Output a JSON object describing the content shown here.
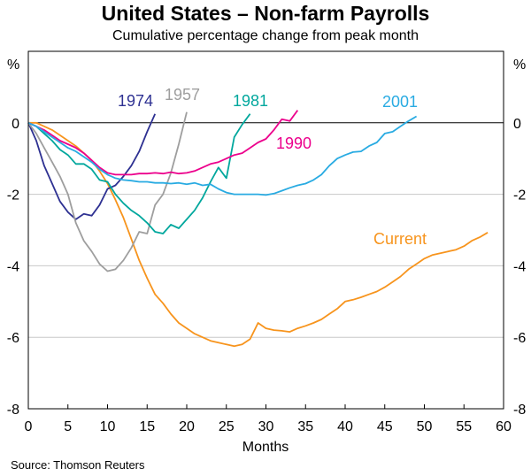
{
  "chart_data": {
    "type": "line",
    "title": "United States – Non-farm Payrolls",
    "subtitle": "Cumulative percentage change from peak month",
    "xlabel": "Months",
    "ylabel_left": "%",
    "ylabel_right": "%",
    "source": "Source: Thomson Reuters",
    "xlim": [
      0,
      60
    ],
    "ylim": [
      -8,
      2
    ],
    "xticks": [
      0,
      5,
      10,
      15,
      20,
      25,
      30,
      35,
      40,
      45,
      50,
      55,
      60
    ],
    "yticks": [
      0,
      -2,
      -4,
      -6,
      -8
    ],
    "ytick_labels": [
      "0",
      "-2",
      "-4",
      "-6",
      "-8"
    ],
    "gridlines_y": [
      0,
      -2,
      -4,
      -6
    ],
    "series": [
      {
        "name": "Current",
        "color": "#f7941d",
        "x": [
          0,
          1,
          2,
          3,
          4,
          5,
          6,
          7,
          8,
          9,
          10,
          11,
          12,
          13,
          14,
          15,
          16,
          17,
          18,
          19,
          20,
          21,
          22,
          23,
          24,
          25,
          26,
          27,
          28,
          29,
          30,
          31,
          32,
          33,
          34,
          35,
          36,
          37,
          38,
          39,
          40,
          41,
          42,
          43,
          44,
          45,
          46,
          47,
          48,
          49,
          50,
          51,
          52,
          53,
          54,
          55,
          56,
          57,
          58
        ],
        "y": [
          0,
          0,
          -0.1,
          -0.2,
          -0.35,
          -0.5,
          -0.65,
          -0.85,
          -1.05,
          -1.35,
          -1.7,
          -2.15,
          -2.65,
          -3.25,
          -3.85,
          -4.35,
          -4.8,
          -5.05,
          -5.35,
          -5.6,
          -5.75,
          -5.9,
          -6.0,
          -6.1,
          -6.15,
          -6.2,
          -6.25,
          -6.2,
          -6.05,
          -5.6,
          -5.75,
          -5.8,
          -5.82,
          -5.85,
          -5.75,
          -5.68,
          -5.6,
          -5.5,
          -5.35,
          -5.2,
          -5.0,
          -4.95,
          -4.88,
          -4.8,
          -4.72,
          -4.6,
          -4.45,
          -4.3,
          -4.1,
          -3.95,
          -3.8,
          -3.7,
          -3.65,
          -3.6,
          -3.55,
          -3.45,
          -3.3,
          -3.2,
          -3.07
        ]
      },
      {
        "name": "1974",
        "color": "#2e3192",
        "x": [
          0,
          1,
          2,
          3,
          4,
          5,
          6,
          7,
          8,
          9,
          10,
          11,
          12,
          13,
          14,
          15,
          16
        ],
        "y": [
          0,
          -0.5,
          -1.2,
          -1.7,
          -2.2,
          -2.5,
          -2.7,
          -2.55,
          -2.6,
          -2.3,
          -1.85,
          -1.75,
          -1.5,
          -1.2,
          -0.8,
          -0.25,
          0.25
        ]
      },
      {
        "name": "1957",
        "color": "#9e9e9e",
        "x": [
          0,
          1,
          2,
          3,
          4,
          5,
          6,
          7,
          8,
          9,
          10,
          11,
          12,
          13,
          14,
          15,
          16,
          17,
          18,
          19,
          20
        ],
        "y": [
          0,
          -0.3,
          -0.7,
          -1.1,
          -1.5,
          -2.0,
          -2.8,
          -3.3,
          -3.6,
          -3.95,
          -4.15,
          -4.1,
          -3.85,
          -3.5,
          -3.05,
          -3.1,
          -2.3,
          -2.0,
          -1.4,
          -0.6,
          0.3
        ]
      },
      {
        "name": "1981",
        "color": "#00a79d",
        "x": [
          0,
          1,
          2,
          3,
          4,
          5,
          6,
          7,
          8,
          9,
          10,
          11,
          12,
          13,
          14,
          15,
          16,
          17,
          18,
          19,
          20,
          21,
          22,
          23,
          24,
          25,
          26,
          27,
          28
        ],
        "y": [
          0,
          -0.1,
          -0.3,
          -0.5,
          -0.75,
          -0.9,
          -1.15,
          -1.15,
          -1.3,
          -1.6,
          -1.65,
          -2.0,
          -2.25,
          -2.45,
          -2.6,
          -2.8,
          -3.05,
          -3.1,
          -2.85,
          -2.95,
          -2.7,
          -2.45,
          -2.1,
          -1.65,
          -1.25,
          -1.55,
          -0.4,
          -0.05,
          0.25
        ]
      },
      {
        "name": "1990",
        "color": "#ec008c",
        "x": [
          0,
          1,
          2,
          3,
          4,
          5,
          6,
          7,
          8,
          9,
          10,
          11,
          12,
          13,
          14,
          15,
          16,
          17,
          18,
          19,
          20,
          21,
          22,
          23,
          24,
          25,
          26,
          27,
          28,
          29,
          30,
          31,
          32,
          33,
          34
        ],
        "y": [
          0,
          -0.1,
          -0.2,
          -0.35,
          -0.5,
          -0.6,
          -0.7,
          -0.85,
          -1.05,
          -1.25,
          -1.4,
          -1.45,
          -1.45,
          -1.45,
          -1.42,
          -1.42,
          -1.4,
          -1.42,
          -1.38,
          -1.42,
          -1.4,
          -1.35,
          -1.25,
          -1.15,
          -1.1,
          -1.0,
          -0.9,
          -0.85,
          -0.7,
          -0.55,
          -0.45,
          -0.2,
          0.1,
          0.05,
          0.35
        ]
      },
      {
        "name": "2001",
        "color": "#29abe2",
        "x": [
          0,
          1,
          2,
          3,
          4,
          5,
          6,
          7,
          8,
          9,
          10,
          11,
          12,
          13,
          14,
          15,
          16,
          17,
          18,
          19,
          20,
          21,
          22,
          23,
          24,
          25,
          26,
          27,
          28,
          29,
          30,
          31,
          32,
          33,
          34,
          35,
          36,
          37,
          38,
          39,
          40,
          41,
          42,
          43,
          44,
          45,
          46,
          47,
          48,
          49
        ],
        "y": [
          0,
          -0.1,
          -0.25,
          -0.4,
          -0.55,
          -0.7,
          -0.8,
          -0.95,
          -1.1,
          -1.3,
          -1.45,
          -1.55,
          -1.6,
          -1.62,
          -1.65,
          -1.65,
          -1.68,
          -1.68,
          -1.7,
          -1.68,
          -1.72,
          -1.68,
          -1.75,
          -1.72,
          -1.85,
          -1.95,
          -2.0,
          -2.0,
          -2.0,
          -2.0,
          -2.02,
          -1.98,
          -1.9,
          -1.82,
          -1.75,
          -1.7,
          -1.6,
          -1.45,
          -1.2,
          -1.0,
          -0.9,
          -0.82,
          -0.8,
          -0.65,
          -0.55,
          -0.3,
          -0.25,
          -0.1,
          0.05,
          0.18
        ]
      }
    ],
    "series_labels": [
      {
        "name": "1974",
        "text": "1974"
      },
      {
        "name": "1957",
        "text": "1957"
      },
      {
        "name": "1981",
        "text": "1981"
      },
      {
        "name": "1990",
        "text": "1990"
      },
      {
        "name": "2001",
        "text": "2001"
      },
      {
        "name": "Current",
        "text": "Current"
      }
    ]
  }
}
